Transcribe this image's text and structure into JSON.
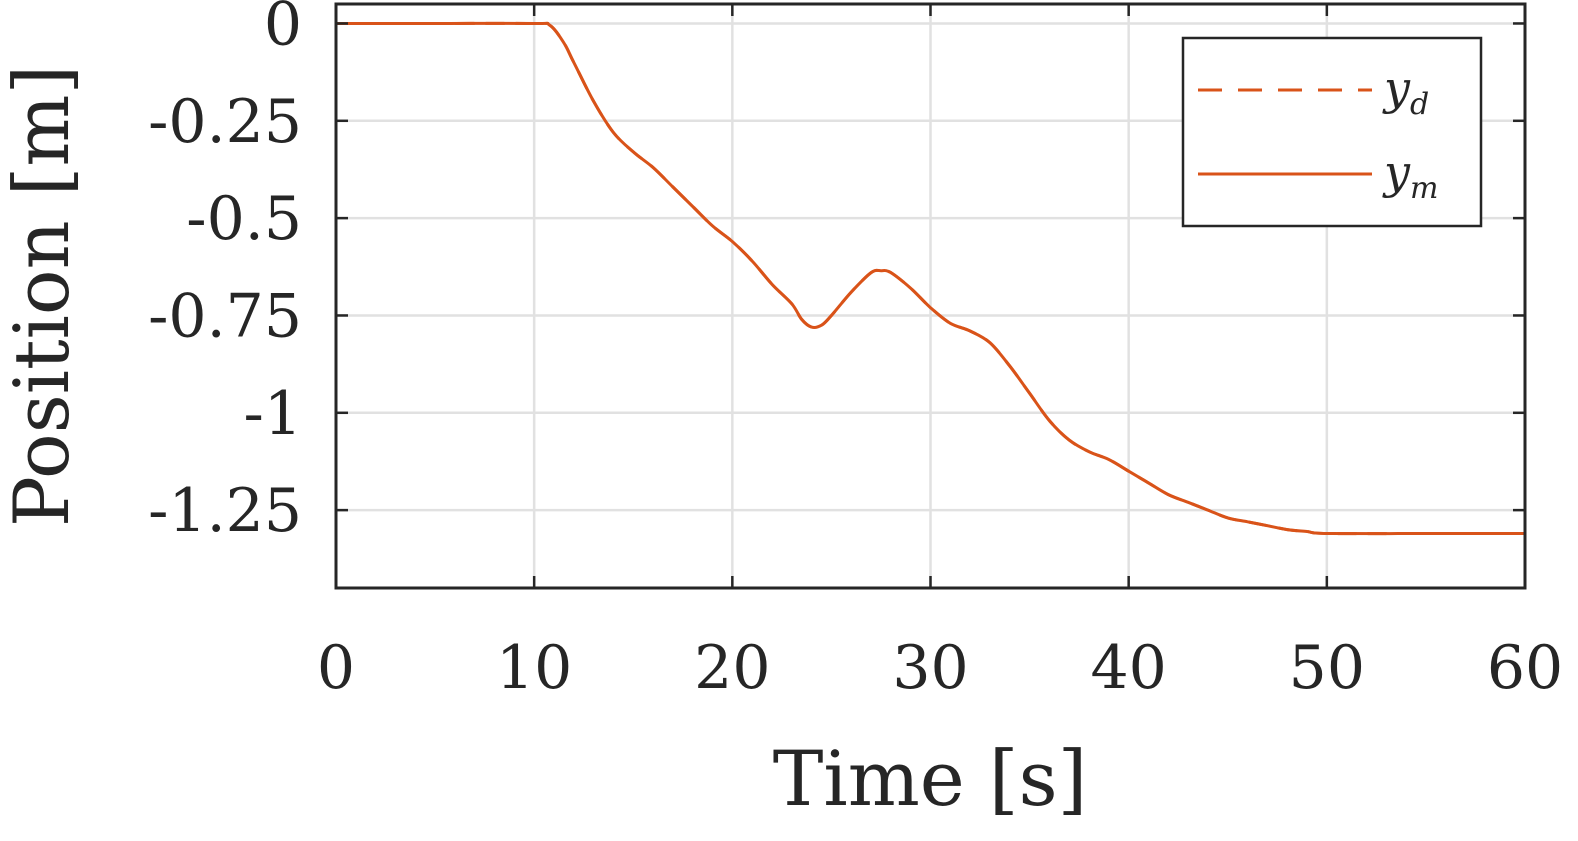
{
  "chart_data": {
    "type": "line",
    "title": "",
    "xlabel": "Time [s]",
    "ylabel": "Position [m]",
    "xlim": [
      0,
      60
    ],
    "ylim": [
      -1.45,
      0.05
    ],
    "xticks": [
      0,
      10,
      20,
      30,
      40,
      50,
      60
    ],
    "yticks": [
      0,
      -0.25,
      -0.5,
      -0.75,
      -1,
      -1.25
    ],
    "xtick_labels": [
      "0",
      "10",
      "20",
      "30",
      "40",
      "50",
      "60"
    ],
    "ytick_labels": [
      "0",
      "-0.25",
      "-0.5",
      "-0.75",
      "-1",
      "-1.25"
    ],
    "grid": true,
    "legend_position": "top-right",
    "series": [
      {
        "name": "y_d",
        "legend_main": "y",
        "legend_sub": "d",
        "color": "#D95319",
        "style": "dashed",
        "x": [
          0,
          5,
          10,
          10.8,
          11.5,
          12,
          13,
          14,
          15,
          16,
          17,
          18,
          19,
          20,
          21,
          22,
          23,
          23.5,
          24,
          24.5,
          25,
          26,
          27,
          27.5,
          28,
          29,
          30,
          31,
          32,
          33,
          34,
          35,
          36,
          37,
          38,
          39,
          40,
          41,
          42,
          43,
          44,
          45,
          46,
          47,
          48,
          49,
          50,
          55,
          60
        ],
        "y": [
          0,
          0,
          0,
          -0.005,
          -0.05,
          -0.1,
          -0.2,
          -0.28,
          -0.33,
          -0.37,
          -0.42,
          -0.47,
          -0.52,
          -0.56,
          -0.61,
          -0.67,
          -0.72,
          -0.76,
          -0.78,
          -0.775,
          -0.75,
          -0.69,
          -0.64,
          -0.635,
          -0.64,
          -0.68,
          -0.73,
          -0.77,
          -0.79,
          -0.82,
          -0.88,
          -0.95,
          -1.02,
          -1.07,
          -1.1,
          -1.12,
          -1.15,
          -1.18,
          -1.21,
          -1.23,
          -1.25,
          -1.27,
          -1.28,
          -1.29,
          -1.3,
          -1.305,
          -1.31,
          -1.31,
          -1.31
        ]
      },
      {
        "name": "y_m",
        "legend_main": "y",
        "legend_sub": "m",
        "color": "#D95319",
        "style": "solid",
        "x": [
          0,
          5,
          10,
          10.8,
          11.5,
          12,
          13,
          14,
          15,
          16,
          17,
          18,
          19,
          20,
          21,
          22,
          23,
          23.5,
          24,
          24.5,
          25,
          26,
          27,
          27.5,
          28,
          29,
          30,
          31,
          32,
          33,
          34,
          35,
          36,
          37,
          38,
          39,
          40,
          41,
          42,
          43,
          44,
          45,
          46,
          47,
          48,
          49,
          50,
          55,
          60
        ],
        "y": [
          0,
          0,
          0,
          -0.005,
          -0.05,
          -0.1,
          -0.2,
          -0.28,
          -0.33,
          -0.37,
          -0.42,
          -0.47,
          -0.52,
          -0.56,
          -0.61,
          -0.67,
          -0.72,
          -0.76,
          -0.78,
          -0.775,
          -0.75,
          -0.69,
          -0.64,
          -0.635,
          -0.64,
          -0.68,
          -0.73,
          -0.77,
          -0.79,
          -0.82,
          -0.88,
          -0.95,
          -1.02,
          -1.07,
          -1.1,
          -1.12,
          -1.15,
          -1.18,
          -1.21,
          -1.23,
          -1.25,
          -1.27,
          -1.28,
          -1.29,
          -1.3,
          -1.305,
          -1.31,
          -1.31,
          -1.31
        ]
      }
    ]
  }
}
